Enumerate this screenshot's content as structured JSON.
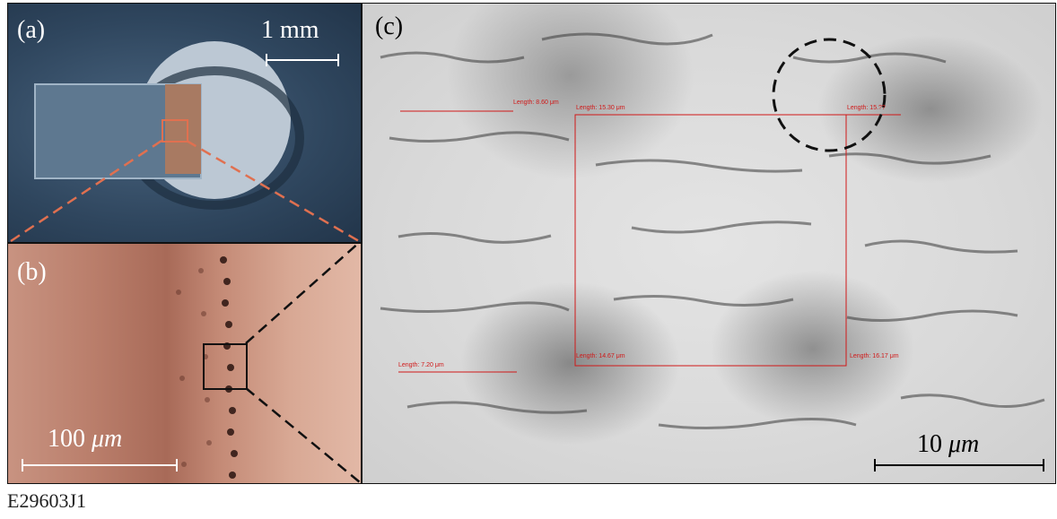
{
  "panels": {
    "a": {
      "label": "(a)",
      "scale": "1 mm"
    },
    "b": {
      "label": "(b)",
      "scale_number": "100",
      "scale_unit": "μm"
    },
    "c": {
      "label": "(c)",
      "scale_number": "10",
      "scale_unit": "μm",
      "measurements": [
        "Length: 8.60 μm",
        "Length: 15.30 μm",
        "Length: 15.??",
        "Length: 7.20 μm",
        "Length: 14.67 μm",
        "Length: 16.17 μm"
      ]
    }
  },
  "caption": "E29603J1",
  "colors": {
    "measurement_red": "#d01818",
    "zoom_orange": "#e07050",
    "zoom_black": "#111111"
  }
}
